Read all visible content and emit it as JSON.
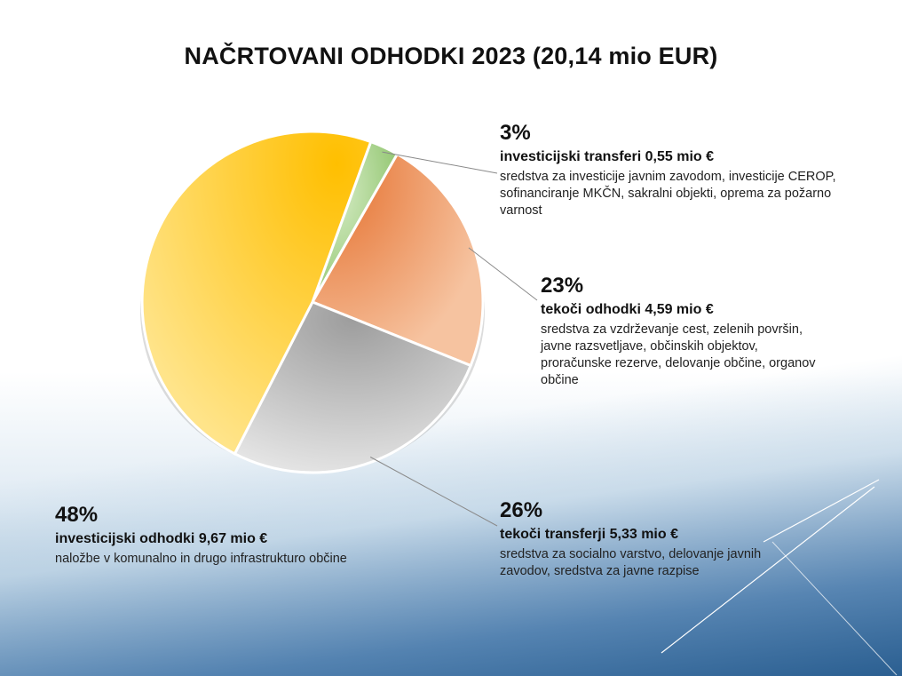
{
  "colors": {
    "investicijski_transferi": "#a8d08d",
    "tekoci_odhodki": "#ed8a50",
    "tekoci_transferji": "#b3b3b3",
    "investicijski_odhodki": "#ffc61a"
  },
  "chart_data": {
    "type": "pie",
    "title": "NAČRTOVANI  ODHODKI 2023  (20,14 mio EUR)",
    "slices": [
      {
        "percent_label": "3%",
        "value": 0.55,
        "name": "investicijski transferi  0,55 mio €",
        "description": "sredstva za investicije javnim zavodom, investicije CEROP, sofinanciranje MKČN, sakralni objekti, oprema za požarno varnost",
        "color": "#a8d08d"
      },
      {
        "percent_label": "23%",
        "value": 4.59,
        "name": "tekoči odhodki  4,59 mio €",
        "description": "sredstva za vzdrževanje cest, zelenih površin, javne razsvetljave, občinskih objektov, proračunske rezerve, delovanje občine, organov občine",
        "color": "#ed8a50"
      },
      {
        "percent_label": "26%",
        "value": 5.33,
        "name": "tekoči transferji  5,33 mio €",
        "description": "sredstva za socialno varstvo, delovanje javnih zavodov, sredstva za javne razpise",
        "color": "#b3b3b3"
      },
      {
        "percent_label": "48%",
        "value": 9.67,
        "name": "investicijski odhodki 9,67 mio €",
        "description": "naložbe v komunalno in drugo infrastrukturo  občine",
        "color": "#ffc61a"
      }
    ]
  }
}
